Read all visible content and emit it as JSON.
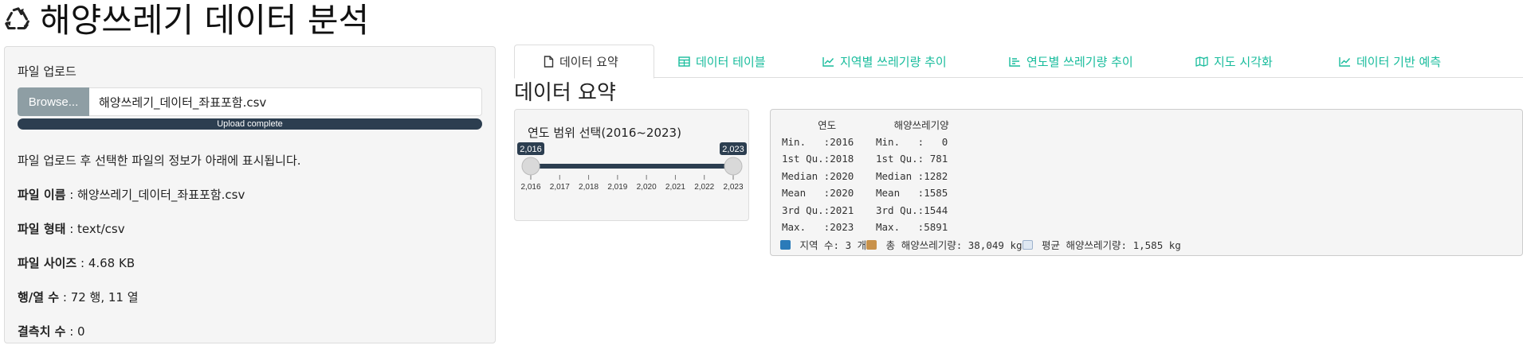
{
  "header": {
    "title": "해양쓰레기 데이터 분석",
    "icon": "recycle-icon"
  },
  "sidebar": {
    "upload_label": "파일 업로드",
    "browse_label": "Browse...",
    "file_name": "해양쓰레기_데이터_좌표포함.csv",
    "progress_label": "Upload complete",
    "progress_value": 100,
    "help_text": "파일 업로드 후 선택한 파일의 정보가 아래에 표시됩니다.",
    "info": [
      {
        "key": "파일 이름",
        "value": " : 해양쓰레기_데이터_좌표포함.csv"
      },
      {
        "key": "파일 형태",
        "value": " : text/csv"
      },
      {
        "key": "파일 사이즈",
        "value": " : 4.68 KB"
      },
      {
        "key": "행/열 수",
        "value": " : 72 행, 11 열"
      },
      {
        "key": "결측치 수",
        "value": " : 0"
      }
    ]
  },
  "tabs": [
    {
      "label": "데이터 요약",
      "icon": "file-icon",
      "active": true
    },
    {
      "label": "데이터 테이블",
      "icon": "table-icon",
      "active": false
    },
    {
      "label": "지역별 쓰레기량 추이",
      "icon": "line-chart-icon",
      "active": false
    },
    {
      "label": "연도별 쓰레기량 추이",
      "icon": "bar-chart-icon",
      "active": false
    },
    {
      "label": "지도 시각화",
      "icon": "map-icon",
      "active": false
    },
    {
      "label": "데이터 기반 예측",
      "icon": "line-chart-icon",
      "active": false
    }
  ],
  "content": {
    "title": "데이터 요약"
  },
  "slider": {
    "label": "연도 범위 선택(2016~2023)",
    "min": 2016,
    "max": 2023,
    "from": 2016,
    "to": 2023,
    "from_label": "2,016",
    "to_label": "2,023",
    "ticks": [
      "2,016",
      "2,017",
      "2,018",
      "2,019",
      "2,020",
      "2,021",
      "2,022",
      "2,023"
    ]
  },
  "summary": {
    "headers": [
      "      연도",
      "   해양쓰레기양"
    ],
    "rows": [
      [
        "Min.   :2016",
        "Min.   :   0"
      ],
      [
        "1st Qu.:2018",
        "1st Qu.: 781"
      ],
      [
        "Median :2020",
        "Median :1282"
      ],
      [
        "Mean   :2020",
        "Mean   :1585"
      ],
      [
        "3rd Qu.:2021",
        "3rd Qu.:1544"
      ],
      [
        "Max.   :2023",
        "Max.   :5891"
      ]
    ],
    "footer": {
      "region_text": " 지역 수: 3 개",
      "total_text": " 총 해양쓰레기량: 38,049 kg",
      "avg_text": " 평균 해양쓰레기량: 1,585 kg",
      "region_icon": "book-icon",
      "total_icon": "package-icon",
      "avg_icon": "trend-chart-icon"
    }
  },
  "colors": {
    "accent": "#18bc9c",
    "dark": "#2c3e50",
    "browse": "#8e9ea4"
  }
}
